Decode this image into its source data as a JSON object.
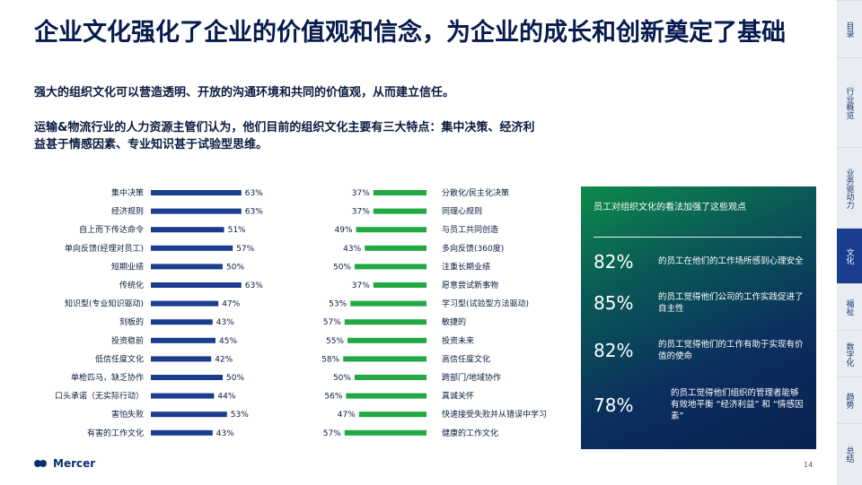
{
  "title": "企业文化强化了企业的价值观和信念，为企业的成长和创新奠定了基础",
  "subtitle": "强大的组织文化可以营造透明、开放的沟通环境和共同的价值观，从而建立信任。",
  "intro": "运输&物流行业的人力资源主管们认为，他们目前的组织文化主要有三大特点：集中决策、经济利益甚于情感因素、专业知识甚于试验型思维。",
  "colors": {
    "blue": "#1b3d8f",
    "green": "#22a943",
    "text": "#0b1b3f"
  },
  "chart_data": [
    {
      "type": "bar",
      "orientation": "horizontal",
      "categories": [
        "集中决策",
        "经济规则",
        "自上而下传达命令",
        "单向反馈(经理对员工)",
        "短期业绩",
        "传统化",
        "知识型(专业知识驱动)",
        "刻板的",
        "投资稳前",
        "低信任度文化",
        "单枪匹马，缺乏协作",
        "口头承诺（无实际行动）",
        "害怕失败",
        "有害的工作文化"
      ],
      "values": [
        63,
        63,
        51,
        57,
        50,
        63,
        47,
        43,
        45,
        42,
        50,
        44,
        53,
        43
      ],
      "value_labels": [
        "63%",
        "63%",
        "51%",
        "57%",
        "50%",
        "63%",
        "47%",
        "43%",
        "45%",
        "42%",
        "50%",
        "44%",
        "53%",
        "43%"
      ],
      "color": "#1b3d8f"
    },
    {
      "type": "bar",
      "orientation": "horizontal",
      "direction": "right-to-left",
      "categories": [
        "分散化/民主化决策",
        "同理心规则",
        "与员工共同创造",
        "多向反馈(360度)",
        "注重长期业绩",
        "愿意尝试新事物",
        "学习型(试验型方法驱动)",
        "敏捷的",
        "投资未来",
        "高信任度文化",
        "跨部门/地域协作",
        "真诚关怀",
        "快速接受失败并从错误中学习",
        "健康的工作文化"
      ],
      "values": [
        37,
        37,
        49,
        43,
        50,
        37,
        53,
        57,
        55,
        58,
        50,
        56,
        47,
        57
      ],
      "value_labels": [
        "37%",
        "37%",
        "49%",
        "43%",
        "50%",
        "37%",
        "53%",
        "57%",
        "55%",
        "58%",
        "50%",
        "56%",
        "47%",
        "57%"
      ],
      "color": "#22a943"
    }
  ],
  "panel": {
    "title": "员工对组织文化的看法加强了这些观点",
    "stats": [
      {
        "pct": "82%",
        "text": "的员工在他们的工作场所感到心理安全"
      },
      {
        "pct": "85%",
        "text": "的员工觉得他们公司的工作实践促进了自主性"
      },
      {
        "pct": "82%",
        "text": "的员工觉得他们的工作有助于实现有价值的使命"
      },
      {
        "pct": "78%",
        "text": "的员工觉得他们组织的管理者能够有效地平衡 “经济利益” 和 “情感因素”"
      }
    ]
  },
  "sidebar": {
    "tabs": [
      {
        "label": "目录",
        "active": false
      },
      {
        "label": "行业概览",
        "active": false
      },
      {
        "label": "业务驱动力",
        "active": false
      },
      {
        "label": "文化",
        "active": true
      },
      {
        "label": "福祉",
        "active": false
      },
      {
        "label": "数字化",
        "active": false
      },
      {
        "label": "趋势",
        "active": false
      },
      {
        "label": "总结",
        "active": false
      }
    ]
  },
  "footer": {
    "brand": "Mercer",
    "page": "14"
  }
}
